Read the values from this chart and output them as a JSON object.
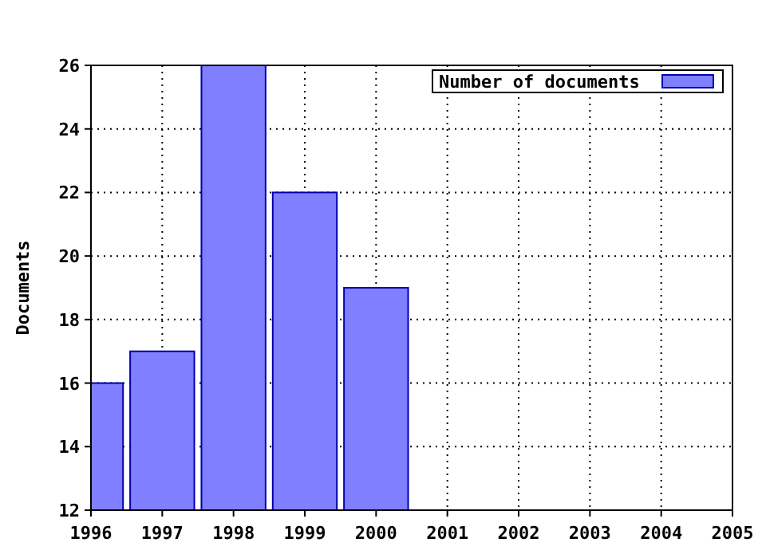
{
  "chart_data": {
    "type": "bar",
    "ylabel": "Documents",
    "x": [
      1996,
      1997,
      1998,
      1999,
      2000
    ],
    "series": [
      {
        "name": "Number of documents",
        "color": "#7f7fff",
        "values": [
          16,
          17,
          26,
          22,
          19
        ]
      }
    ],
    "xlim": [
      1996,
      2005
    ],
    "xticks": [
      1996,
      1997,
      1998,
      1999,
      2000,
      2001,
      2002,
      2003,
      2004,
      2005
    ],
    "ylim": [
      12,
      26
    ],
    "yticks": [
      12,
      14,
      16,
      18,
      20,
      22,
      24,
      26
    ],
    "grid": true,
    "legend": "top right"
  }
}
